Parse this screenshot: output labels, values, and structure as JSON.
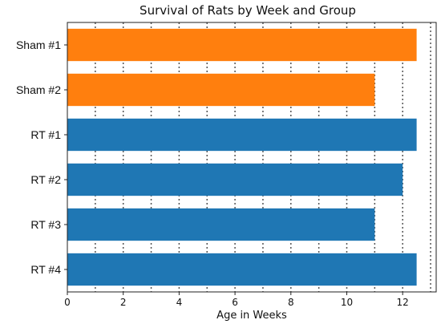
{
  "chart_data": {
    "type": "bar",
    "orientation": "horizontal",
    "title": "Survival of Rats by Week and Group",
    "xlabel": "Age in Weeks",
    "ylabel": "",
    "categories": [
      "Sham #1",
      "Sham #2",
      "RT #1",
      "RT #2",
      "RT #3",
      "RT #4"
    ],
    "values": [
      12.5,
      11,
      12.5,
      12,
      11,
      12.5
    ],
    "groups": [
      "Sham",
      "Sham",
      "RT",
      "RT",
      "RT",
      "RT"
    ],
    "group_colors": {
      "Sham": "#ff7f0e",
      "RT": "#1f77b4"
    },
    "xlim": [
      0,
      13.2
    ],
    "xticks": [
      0,
      2,
      4,
      6,
      8,
      10,
      12
    ],
    "grid": {
      "x": true,
      "style": "dotted",
      "lines": [
        1,
        2,
        3,
        4,
        5,
        6,
        7,
        8,
        9,
        10,
        11,
        12,
        13
      ]
    },
    "legend": "none"
  }
}
